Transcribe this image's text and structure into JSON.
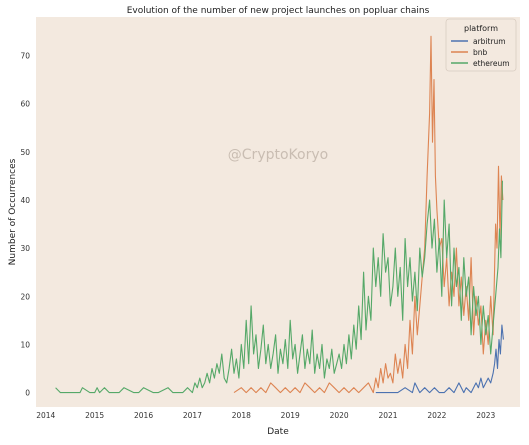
{
  "chart_data": {
    "type": "line",
    "title": "Evolution of the number of new project launches on popluar chains",
    "xlabel": "Date",
    "ylabel": "Number of Occurrences",
    "watermark": "@CryptoKoryo",
    "grid": false,
    "background": "#f3e9df",
    "xlim": [
      2013.8,
      2023.7
    ],
    "ylim": [
      -3,
      78
    ],
    "xticks": [
      2014,
      2015,
      2016,
      2017,
      2018,
      2019,
      2020,
      2021,
      2022,
      2023
    ],
    "yticks": [
      0,
      10,
      20,
      30,
      40,
      50,
      60,
      70
    ],
    "legend": {
      "title": "platform",
      "position": "top-right"
    },
    "series": [
      {
        "name": "arbitrum",
        "color": "#4c72b0",
        "x": [
          2020.75,
          2020.9,
          2021.0,
          2021.2,
          2021.35,
          2021.5,
          2021.55,
          2021.65,
          2021.75,
          2021.85,
          2021.95,
          2022.05,
          2022.15,
          2022.25,
          2022.35,
          2022.45,
          2022.55,
          2022.6,
          2022.7,
          2022.8,
          2022.85,
          2022.9,
          2022.95,
          2023.0,
          2023.05,
          2023.1,
          2023.15,
          2023.18,
          2023.21,
          2023.24,
          2023.27,
          2023.3,
          2023.33,
          2023.36
        ],
        "y": [
          0,
          0,
          0,
          0,
          1,
          0,
          2,
          0,
          1,
          0,
          1,
          0,
          0,
          1,
          0,
          2,
          0,
          1,
          0,
          2,
          1,
          3,
          1,
          2,
          3,
          2,
          4,
          6,
          9,
          5,
          11,
          8,
          14,
          11
        ]
      },
      {
        "name": "bnb",
        "color": "#dd8452",
        "x": [
          2017.85,
          2018.0,
          2018.1,
          2018.2,
          2018.3,
          2018.4,
          2018.5,
          2018.6,
          2018.7,
          2018.8,
          2018.9,
          2019.0,
          2019.1,
          2019.2,
          2019.3,
          2019.4,
          2019.5,
          2019.6,
          2019.7,
          2019.8,
          2019.9,
          2020.0,
          2020.1,
          2020.2,
          2020.3,
          2020.4,
          2020.5,
          2020.6,
          2020.7,
          2020.75,
          2020.8,
          2020.85,
          2020.9,
          2020.95,
          2021.0,
          2021.05,
          2021.1,
          2021.15,
          2021.2,
          2021.25,
          2021.3,
          2021.35,
          2021.4,
          2021.45,
          2021.5,
          2021.55,
          2021.6,
          2021.65,
          2021.7,
          2021.75,
          2021.8,
          2021.85,
          2021.88,
          2021.91,
          2021.94,
          2021.97,
          2022.0,
          2022.05,
          2022.1,
          2022.15,
          2022.2,
          2022.25,
          2022.3,
          2022.35,
          2022.4,
          2022.45,
          2022.5,
          2022.55,
          2022.6,
          2022.65,
          2022.7,
          2022.75,
          2022.8,
          2022.85,
          2022.9,
          2022.95,
          2023.0,
          2023.05,
          2023.1,
          2023.15,
          2023.2,
          2023.23,
          2023.26,
          2023.29,
          2023.32,
          2023.35
        ],
        "y": [
          0,
          1,
          0,
          1,
          0,
          1,
          0,
          2,
          1,
          0,
          1,
          0,
          1,
          0,
          2,
          1,
          0,
          1,
          0,
          2,
          1,
          0,
          1,
          0,
          1,
          0,
          1,
          2,
          0,
          3,
          1,
          5,
          2,
          6,
          3,
          4,
          2,
          8,
          4,
          7,
          3,
          10,
          5,
          15,
          8,
          20,
          12,
          18,
          24,
          30,
          45,
          58,
          74,
          52,
          65,
          45,
          38,
          30,
          32,
          22,
          28,
          18,
          25,
          20,
          30,
          18,
          24,
          16,
          22,
          15,
          28,
          12,
          20,
          14,
          18,
          8,
          15,
          10,
          20,
          12,
          35,
          30,
          47,
          32,
          45,
          40
        ]
      },
      {
        "name": "ethereum",
        "color": "#55a868",
        "x": [
          2014.2,
          2014.3,
          2014.5,
          2014.7,
          2014.75,
          2014.9,
          2015.0,
          2015.05,
          2015.1,
          2015.2,
          2015.3,
          2015.35,
          2015.5,
          2015.6,
          2015.8,
          2015.9,
          2016.0,
          2016.2,
          2016.3,
          2016.5,
          2016.6,
          2016.7,
          2016.8,
          2016.9,
          2017.0,
          2017.05,
          2017.1,
          2017.15,
          2017.2,
          2017.25,
          2017.3,
          2017.35,
          2017.4,
          2017.45,
          2017.5,
          2017.55,
          2017.6,
          2017.65,
          2017.7,
          2017.75,
          2017.8,
          2017.85,
          2017.9,
          2017.95,
          2018.0,
          2018.05,
          2018.1,
          2018.15,
          2018.2,
          2018.25,
          2018.3,
          2018.35,
          2018.4,
          2018.45,
          2018.5,
          2018.55,
          2018.6,
          2018.65,
          2018.7,
          2018.75,
          2018.8,
          2018.85,
          2018.9,
          2018.95,
          2019.0,
          2019.05,
          2019.1,
          2019.15,
          2019.2,
          2019.25,
          2019.3,
          2019.35,
          2019.4,
          2019.45,
          2019.5,
          2019.55,
          2019.6,
          2019.65,
          2019.7,
          2019.75,
          2019.8,
          2019.85,
          2019.9,
          2019.95,
          2020.0,
          2020.05,
          2020.1,
          2020.15,
          2020.2,
          2020.25,
          2020.3,
          2020.35,
          2020.4,
          2020.45,
          2020.5,
          2020.55,
          2020.6,
          2020.65,
          2020.7,
          2020.75,
          2020.8,
          2020.85,
          2020.9,
          2020.95,
          2021.0,
          2021.05,
          2021.1,
          2021.15,
          2021.2,
          2021.25,
          2021.3,
          2021.35,
          2021.4,
          2021.45,
          2021.5,
          2021.55,
          2021.6,
          2021.65,
          2021.7,
          2021.75,
          2021.8,
          2021.85,
          2021.9,
          2021.95,
          2022.0,
          2022.05,
          2022.1,
          2022.15,
          2022.2,
          2022.25,
          2022.3,
          2022.35,
          2022.4,
          2022.45,
          2022.5,
          2022.55,
          2022.6,
          2022.65,
          2022.7,
          2022.75,
          2022.8,
          2022.85,
          2022.9,
          2022.95,
          2023.0,
          2023.05,
          2023.1,
          2023.15,
          2023.2,
          2023.25,
          2023.28,
          2023.31,
          2023.34
        ],
        "y": [
          1,
          0,
          0,
          0,
          1,
          0,
          0,
          1,
          0,
          1,
          0,
          0,
          0,
          1,
          0,
          0,
          1,
          0,
          0,
          1,
          0,
          0,
          0,
          1,
          0,
          2,
          1,
          3,
          1,
          2,
          4,
          2,
          5,
          3,
          6,
          4,
          8,
          3,
          2,
          5,
          9,
          4,
          7,
          3,
          10,
          5,
          15,
          6,
          18,
          8,
          12,
          5,
          9,
          14,
          6,
          10,
          5,
          8,
          12,
          4,
          9,
          6,
          11,
          5,
          15,
          7,
          10,
          4,
          8,
          12,
          5,
          9,
          6,
          13,
          4,
          8,
          5,
          10,
          3,
          7,
          5,
          9,
          4,
          6,
          8,
          5,
          10,
          6,
          12,
          7,
          14,
          9,
          18,
          11,
          25,
          13,
          20,
          15,
          30,
          22,
          28,
          20,
          33,
          25,
          28,
          18,
          22,
          30,
          20,
          26,
          15,
          32,
          22,
          28,
          19,
          25,
          17,
          30,
          24,
          28,
          35,
          40,
          30,
          36,
          25,
          32,
          20,
          40,
          28,
          35,
          18,
          30,
          22,
          26,
          15,
          28,
          20,
          24,
          12,
          22,
          16,
          20,
          10,
          18,
          12,
          16,
          8,
          14,
          20,
          26,
          34,
          28,
          44
        ]
      }
    ]
  }
}
